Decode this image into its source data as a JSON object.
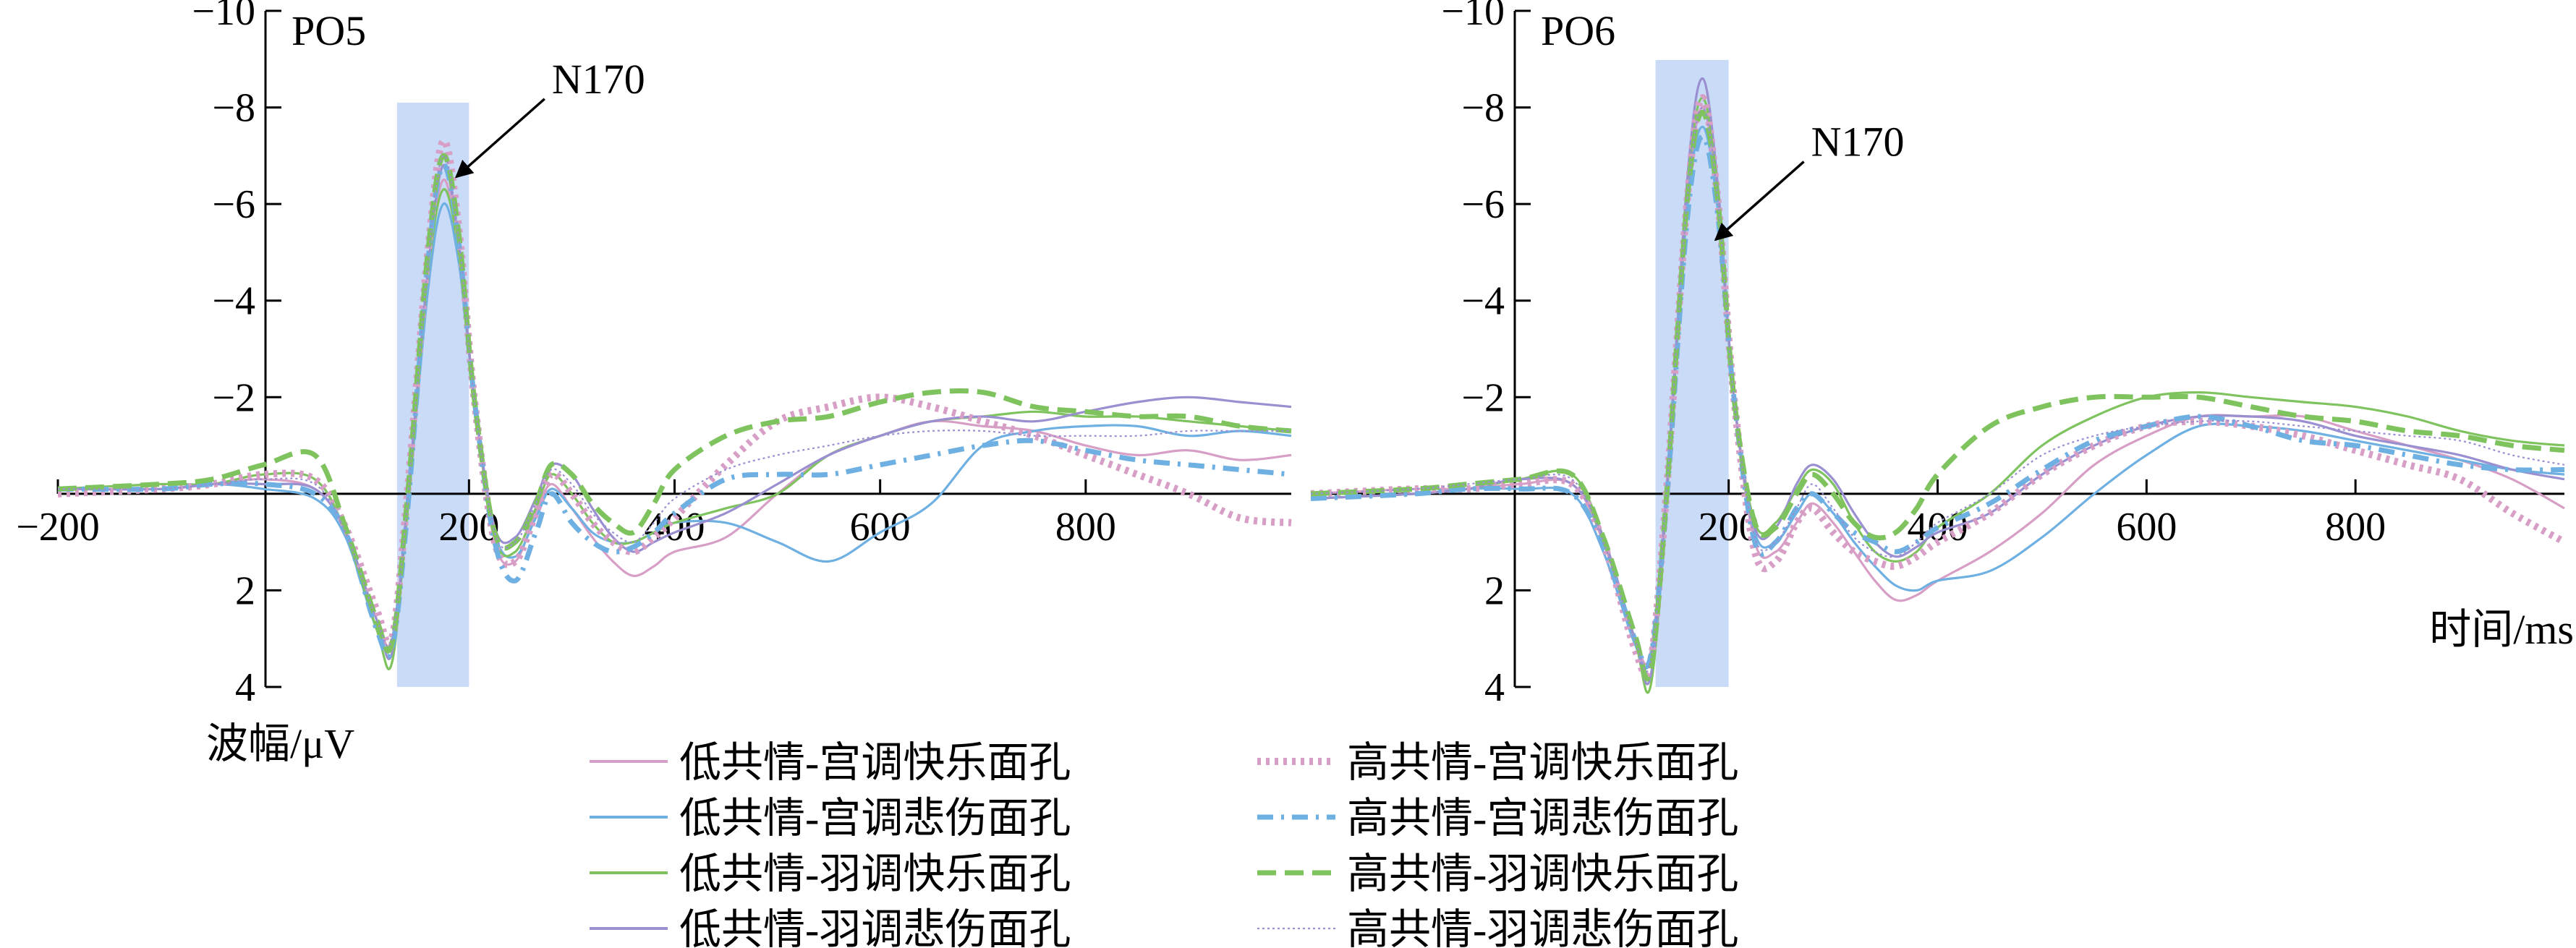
{
  "chart_data": [
    {
      "type": "line",
      "title": "PO5",
      "xlabel": "",
      "ylabel": "波幅/μV",
      "xlim": [
        -200,
        1000
      ],
      "ylim": [
        4,
        -10
      ],
      "y_inverted": true,
      "xticks": [
        -200,
        200,
        400,
        600,
        800
      ],
      "xtick_labels": [
        "−200",
        "200",
        "400",
        "600",
        "800"
      ],
      "yticks": [
        -10,
        -8,
        -6,
        -4,
        -2,
        2,
        4
      ],
      "ytick_labels": [
        "−10",
        "−8",
        "−6",
        "−4",
        "−2",
        "2",
        "4"
      ],
      "highlight_window": [
        130,
        200
      ],
      "annotation": {
        "label": "N170",
        "x": 175,
        "y": -6.5
      },
      "x": [
        -200,
        -100,
        -50,
        0,
        50,
        80,
        110,
        125,
        140,
        160,
        175,
        190,
        205,
        225,
        245,
        265,
        280,
        300,
        320,
        340,
        360,
        380,
        400,
        450,
        500,
        550,
        600,
        650,
        700,
        750,
        800,
        850,
        900,
        950,
        1000
      ],
      "series": [
        {
          "name": "低共情-宫调快乐面孔",
          "values": [
            -0.1,
            -0.1,
            -0.2,
            -0.3,
            -0.1,
            0.8,
            2.6,
            3.0,
            0.2,
            -4.5,
            -6.5,
            -5.0,
            -2.0,
            1.0,
            1.4,
            0.4,
            -0.2,
            0.3,
            0.9,
            1.4,
            1.7,
            1.5,
            1.2,
            0.9,
            0.0,
            -0.8,
            -1.2,
            -1.5,
            -1.4,
            -1.3,
            -1.0,
            -0.8,
            -0.9,
            -0.7,
            -0.8
          ]
        },
        {
          "name": "低共情-宫调悲伤面孔",
          "values": [
            -0.1,
            -0.1,
            -0.2,
            -0.1,
            0.1,
            0.9,
            2.8,
            3.1,
            0.4,
            -4.2,
            -6.0,
            -4.8,
            -2.0,
            0.8,
            1.3,
            0.5,
            -0.1,
            0.3,
            0.8,
            1.0,
            1.0,
            0.8,
            0.6,
            0.6,
            1.0,
            1.4,
            0.8,
            0.2,
            -1.0,
            -1.3,
            -1.4,
            -1.4,
            -1.2,
            -1.3,
            -1.2
          ]
        },
        {
          "name": "低共情-羽调快乐面孔",
          "values": [
            -0.1,
            -0.2,
            -0.2,
            -0.4,
            -0.3,
            0.8,
            2.8,
            3.5,
            0.3,
            -4.5,
            -6.3,
            -5.0,
            -2.0,
            0.9,
            1.2,
            0.3,
            -0.4,
            0.0,
            0.6,
            1.0,
            1.0,
            0.8,
            0.6,
            0.3,
            0.0,
            -0.8,
            -1.2,
            -1.5,
            -1.6,
            -1.7,
            -1.6,
            -1.6,
            -1.5,
            -1.4,
            -1.3
          ]
        },
        {
          "name": "低共情-羽调悲伤面孔",
          "values": [
            -0.1,
            -0.1,
            -0.2,
            -0.2,
            -0.1,
            0.8,
            2.6,
            3.3,
            0.2,
            -4.6,
            -6.8,
            -5.2,
            -2.0,
            0.7,
            0.9,
            0.1,
            -0.6,
            -0.4,
            0.3,
            0.9,
            1.2,
            1.0,
            0.8,
            0.4,
            -0.2,
            -0.8,
            -1.2,
            -1.5,
            -1.6,
            -1.5,
            -1.7,
            -1.9,
            -2.0,
            -1.9,
            -1.8
          ]
        },
        {
          "name": "高共情-宫调快乐面孔",
          "values": [
            0.0,
            -0.1,
            -0.2,
            -0.4,
            -0.3,
            0.7,
            2.4,
            3.0,
            0.0,
            -5.0,
            -7.3,
            -5.5,
            -2.0,
            1.0,
            1.4,
            0.4,
            -0.4,
            0.0,
            0.6,
            1.0,
            1.2,
            0.9,
            0.5,
            -0.6,
            -1.5,
            -1.8,
            -2.0,
            -1.8,
            -1.5,
            -1.2,
            -0.8,
            -0.4,
            0.0,
            0.5,
            0.6
          ]
        },
        {
          "name": "高共情-宫调悲伤面孔",
          "values": [
            -0.1,
            -0.1,
            -0.2,
            -0.2,
            0.0,
            0.8,
            2.8,
            3.2,
            0.4,
            -4.8,
            -6.8,
            -5.2,
            -2.0,
            1.0,
            1.8,
            0.8,
            0.0,
            0.6,
            1.0,
            1.2,
            1.1,
            0.8,
            0.4,
            -0.3,
            -0.4,
            -0.4,
            -0.6,
            -0.8,
            -1.0,
            -1.1,
            -0.9,
            -0.7,
            -0.6,
            -0.5,
            -0.4
          ]
        },
        {
          "name": "高共情-羽调快乐面孔",
          "values": [
            -0.1,
            -0.2,
            -0.3,
            -0.6,
            -0.8,
            0.7,
            2.6,
            3.1,
            0.1,
            -5.0,
            -7.0,
            -5.4,
            -2.0,
            0.8,
            1.0,
            0.2,
            -0.6,
            -0.4,
            0.2,
            0.6,
            0.8,
            0.2,
            -0.5,
            -1.2,
            -1.5,
            -1.6,
            -1.9,
            -2.1,
            -2.1,
            -1.8,
            -1.7,
            -1.6,
            -1.6,
            -1.4,
            -1.3
          ]
        },
        {
          "name": "高共情-羽调悲伤面孔",
          "values": [
            -0.1,
            -0.1,
            -0.2,
            -0.3,
            -0.2,
            0.8,
            2.6,
            3.0,
            0.2,
            -4.8,
            -7.0,
            -5.3,
            -2.0,
            0.8,
            1.0,
            0.2,
            -0.5,
            -0.2,
            0.4,
            0.8,
            1.0,
            0.6,
            0.1,
            -0.5,
            -0.8,
            -1.0,
            -1.2,
            -1.3,
            -1.3,
            -1.2,
            -1.2,
            -1.2,
            -1.3,
            -1.3,
            -1.3
          ]
        }
      ]
    },
    {
      "type": "line",
      "title": "PO6",
      "xlabel": "时间/ms",
      "ylabel": "",
      "xlim": [
        -200,
        1000
      ],
      "ylim": [
        4,
        -10
      ],
      "y_inverted": true,
      "xticks": [
        200,
        400,
        600,
        800
      ],
      "xtick_labels": [
        "200",
        "400",
        "600",
        "800"
      ],
      "yticks": [
        -10,
        -8,
        -6,
        -4,
        -2,
        2,
        4
      ],
      "ytick_labels": [
        "−10",
        "−8",
        "−6",
        "−4",
        "−2",
        "2",
        "4"
      ],
      "highlight_window": [
        130,
        200
      ],
      "annotation": {
        "label": "N170",
        "x": 175,
        "y": -5.2
      },
      "x": [
        -200,
        -100,
        -50,
        0,
        50,
        80,
        110,
        125,
        140,
        160,
        175,
        190,
        205,
        225,
        245,
        265,
        280,
        300,
        320,
        340,
        360,
        380,
        400,
        450,
        500,
        550,
        600,
        650,
        700,
        750,
        800,
        850,
        900,
        950,
        1000
      ],
      "series": [
        {
          "name": "低共情-宫调快乐面孔",
          "values": [
            0.0,
            -0.1,
            -0.1,
            -0.2,
            -0.2,
            1.0,
            3.0,
            3.3,
            0.0,
            -6.0,
            -8.0,
            -6.0,
            -2.0,
            1.0,
            1.2,
            0.6,
            0.2,
            0.6,
            1.2,
            1.8,
            2.2,
            2.1,
            1.8,
            1.2,
            0.4,
            -0.6,
            -1.2,
            -1.6,
            -1.6,
            -1.6,
            -1.3,
            -1.0,
            -0.7,
            -0.3,
            0.3
          ]
        },
        {
          "name": "低共情-宫调悲伤面孔",
          "values": [
            0.1,
            0.0,
            -0.1,
            -0.1,
            0.0,
            1.2,
            3.1,
            3.4,
            0.2,
            -5.8,
            -7.6,
            -5.8,
            -2.0,
            0.8,
            1.0,
            0.4,
            0.0,
            0.4,
            1.0,
            1.5,
            1.9,
            2.0,
            1.8,
            1.6,
            0.9,
            0.0,
            -0.8,
            -1.4,
            -1.4,
            -1.3,
            -1.1,
            -0.9,
            -0.7,
            -0.5,
            -0.4
          ]
        },
        {
          "name": "低共情-羽调快乐面孔",
          "values": [
            0.1,
            0.0,
            -0.1,
            -0.3,
            -0.4,
            0.9,
            3.0,
            4.0,
            0.3,
            -6.2,
            -8.2,
            -6.2,
            -2.0,
            0.6,
            0.6,
            -0.1,
            -0.5,
            -0.2,
            0.6,
            1.2,
            1.4,
            1.2,
            0.7,
            0.0,
            -1.0,
            -1.6,
            -2.0,
            -2.1,
            -2.0,
            -1.9,
            -1.8,
            -1.6,
            -1.3,
            -1.1,
            -1.0
          ]
        },
        {
          "name": "低共情-羽调悲伤面孔",
          "values": [
            0.1,
            0.0,
            -0.1,
            -0.3,
            -0.2,
            0.9,
            3.0,
            3.8,
            0.2,
            -6.4,
            -8.6,
            -6.3,
            -2.0,
            0.7,
            0.7,
            -0.2,
            -0.6,
            -0.3,
            0.4,
            1.0,
            1.3,
            1.1,
            0.8,
            0.4,
            -0.4,
            -1.0,
            -1.4,
            -1.6,
            -1.6,
            -1.5,
            -1.2,
            -1.0,
            -0.8,
            -0.5,
            -0.3
          ]
        },
        {
          "name": "高共情-宫调快乐面孔",
          "values": [
            0.0,
            -0.1,
            -0.1,
            -0.2,
            -0.2,
            1.0,
            3.2,
            3.5,
            0.1,
            -6.0,
            -8.2,
            -6.0,
            -2.0,
            1.2,
            1.4,
            0.6,
            0.3,
            0.8,
            1.2,
            1.4,
            1.5,
            1.3,
            1.0,
            0.4,
            -0.4,
            -1.0,
            -1.4,
            -1.5,
            -1.4,
            -1.2,
            -0.9,
            -0.6,
            -0.3,
            0.4,
            1.0
          ]
        },
        {
          "name": "高共情-宫调悲伤面孔",
          "values": [
            0.1,
            0.0,
            -0.1,
            -0.1,
            0.0,
            1.1,
            3.0,
            3.4,
            0.3,
            -5.6,
            -7.4,
            -5.7,
            -2.0,
            1.0,
            1.0,
            0.3,
            0.0,
            0.4,
            0.8,
            1.0,
            1.2,
            1.0,
            0.7,
            0.2,
            -0.5,
            -1.1,
            -1.4,
            -1.6,
            -1.4,
            -1.1,
            -1.0,
            -0.8,
            -0.6,
            -0.5,
            -0.5
          ]
        },
        {
          "name": "高共情-羽调快乐面孔",
          "values": [
            0.0,
            -0.1,
            -0.2,
            -0.3,
            -0.4,
            0.9,
            2.9,
            3.7,
            0.2,
            -6.0,
            -7.9,
            -6.0,
            -2.0,
            0.6,
            0.7,
            0.0,
            -0.4,
            0.0,
            0.6,
            0.9,
            0.8,
            0.3,
            -0.4,
            -1.4,
            -1.8,
            -2.0,
            -2.0,
            -2.0,
            -1.8,
            -1.6,
            -1.5,
            -1.3,
            -1.2,
            -1.0,
            -0.9
          ]
        },
        {
          "name": "高共情-羽调悲伤面孔",
          "values": [
            0.0,
            -0.1,
            -0.2,
            -0.3,
            -0.3,
            1.0,
            3.0,
            3.5,
            0.1,
            -6.0,
            -8.0,
            -6.0,
            -2.0,
            0.9,
            1.0,
            0.3,
            -0.2,
            0.3,
            0.9,
            1.2,
            1.3,
            1.0,
            0.6,
            0.0,
            -0.8,
            -1.2,
            -1.4,
            -1.5,
            -1.5,
            -1.4,
            -1.3,
            -1.2,
            -1.1,
            -0.8,
            -0.6
          ]
        }
      ]
    }
  ],
  "legend": {
    "placement": "bottom-center",
    "items": [
      {
        "label": "低共情-宫调快乐面孔",
        "color": "#d79ec6",
        "style": "solid"
      },
      {
        "label": "低共情-宫调悲伤面孔",
        "color": "#6fb0e3",
        "style": "solid"
      },
      {
        "label": "低共情-羽调快乐面孔",
        "color": "#7fc35f",
        "style": "solid"
      },
      {
        "label": "低共情-羽调悲伤面孔",
        "color": "#9a8fd0",
        "style": "solid"
      },
      {
        "label": "高共情-宫调快乐面孔",
        "color": "#d79ec6",
        "style": "dotted"
      },
      {
        "label": "高共情-宫调悲伤面孔",
        "color": "#6fb0e3",
        "style": "dashdot"
      },
      {
        "label": "高共情-羽调快乐面孔",
        "color": "#7fc35f",
        "style": "dashed"
      },
      {
        "label": "高共情-羽调悲伤面孔",
        "color": "#9a8fd0",
        "style": "finedot"
      }
    ]
  },
  "colors": {
    "highlight": "#c9dbf7",
    "axis": "#000000"
  }
}
